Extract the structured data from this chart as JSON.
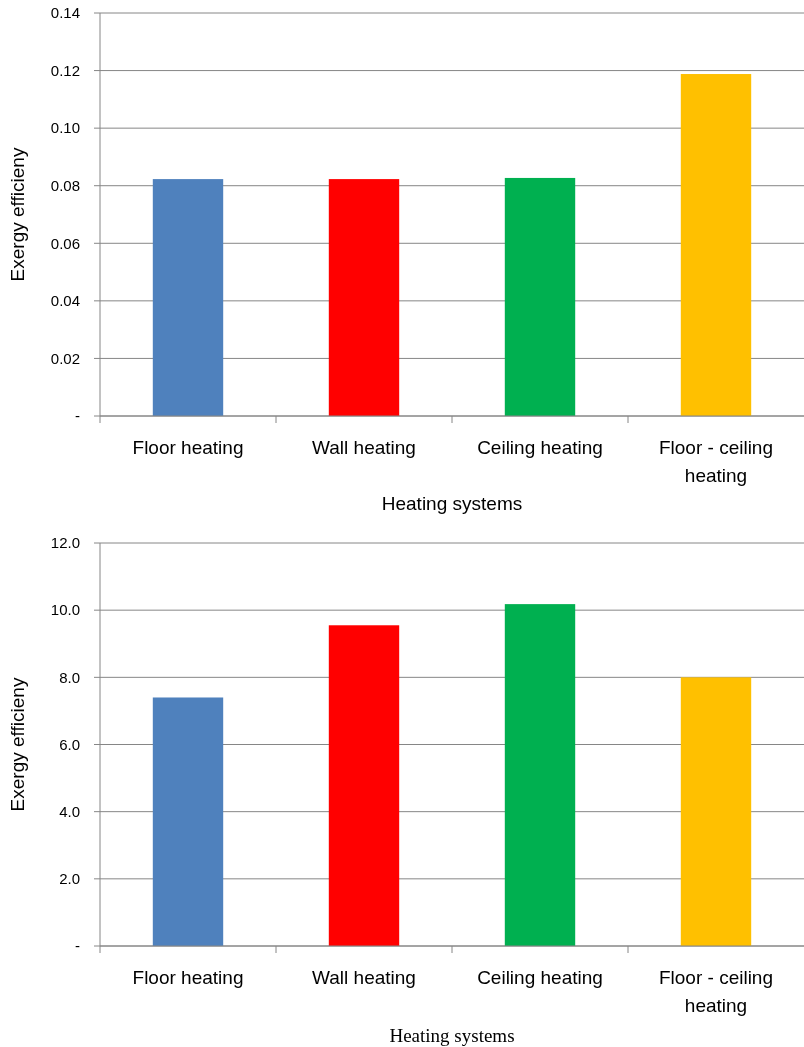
{
  "chart_data": [
    {
      "type": "bar",
      "xlabel": "Heating systems",
      "ylabel": "Exergy efficieny",
      "categories": [
        "Floor heating",
        "Wall heating",
        "Ceiling heating",
        "Floor - ceiling heating"
      ],
      "values": [
        0.0823,
        0.0823,
        0.0827,
        0.1188
      ],
      "colors": [
        "#4f81bd",
        "#ff0000",
        "#00b050",
        "#ffc000"
      ],
      "ylim": [
        0,
        0.14
      ],
      "yticks": [
        {
          "value": 0,
          "label": "-"
        },
        0.02,
        0.04,
        0.06,
        0.08,
        {
          "value": 0.1,
          "label": "0.10"
        },
        0.12,
        0.14
      ],
      "grid": "y"
    },
    {
      "type": "bar",
      "xlabel": "Heating systems",
      "ylabel": "Exergy efficieny",
      "categories": [
        "Floor heating",
        "Wall heating",
        "Ceiling heating",
        "Floor - ceiling heating"
      ],
      "values": [
        7.4,
        9.55,
        10.18,
        8.0
      ],
      "colors": [
        "#4f81bd",
        "#ff0000",
        "#00b050",
        "#ffc000"
      ],
      "ylim": [
        0,
        12
      ],
      "yticks": [
        {
          "value": 0,
          "label": "-"
        },
        {
          "value": 2,
          "label": "2.0"
        },
        {
          "value": 4,
          "label": "4.0"
        },
        {
          "value": 6,
          "label": "6.0"
        },
        {
          "value": 8,
          "label": "8.0"
        },
        {
          "value": 10,
          "label": "10.0"
        },
        {
          "value": 12,
          "label": "12.0"
        }
      ],
      "grid": "y"
    }
  ]
}
